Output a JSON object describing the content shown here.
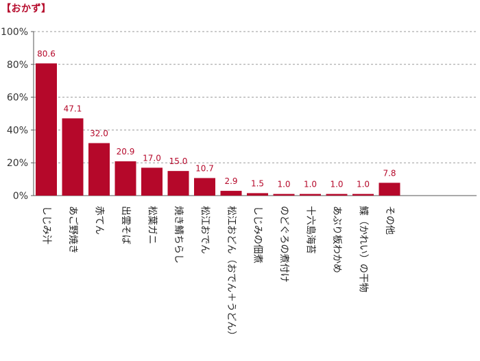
{
  "chart_data": {
    "type": "bar",
    "title": "【おかず】",
    "categories": [
      "しじみ汁",
      "あご野焼き",
      "赤てん",
      "出雲そば",
      "松葉ガニ",
      "焼き鯖ちらし",
      "松江おでん",
      "松江おどん（おでん＋うどん）",
      "しじみの佃煮",
      "のどぐろの煮付け",
      "十六島海苔",
      "あぶり板わかめ",
      "鰈（かれい）の干物",
      "その他"
    ],
    "values": [
      80.6,
      47.1,
      32.0,
      20.9,
      17.0,
      15.0,
      10.7,
      2.9,
      1.5,
      1.0,
      1.0,
      1.0,
      1.0,
      7.8
    ],
    "value_labels": [
      "80.6",
      "47.1",
      "32.0",
      "20.9",
      "17.0",
      "15.0",
      "10.7",
      "2.9",
      "1.5",
      "1.0",
      "1.0",
      "1.0",
      "1.0",
      "7.8"
    ],
    "yticks": [
      "0%",
      "20%",
      "40%",
      "60%",
      "80%",
      "100%"
    ],
    "ylim": [
      0,
      100
    ],
    "grid": true,
    "bar_color": "#b5082a"
  }
}
